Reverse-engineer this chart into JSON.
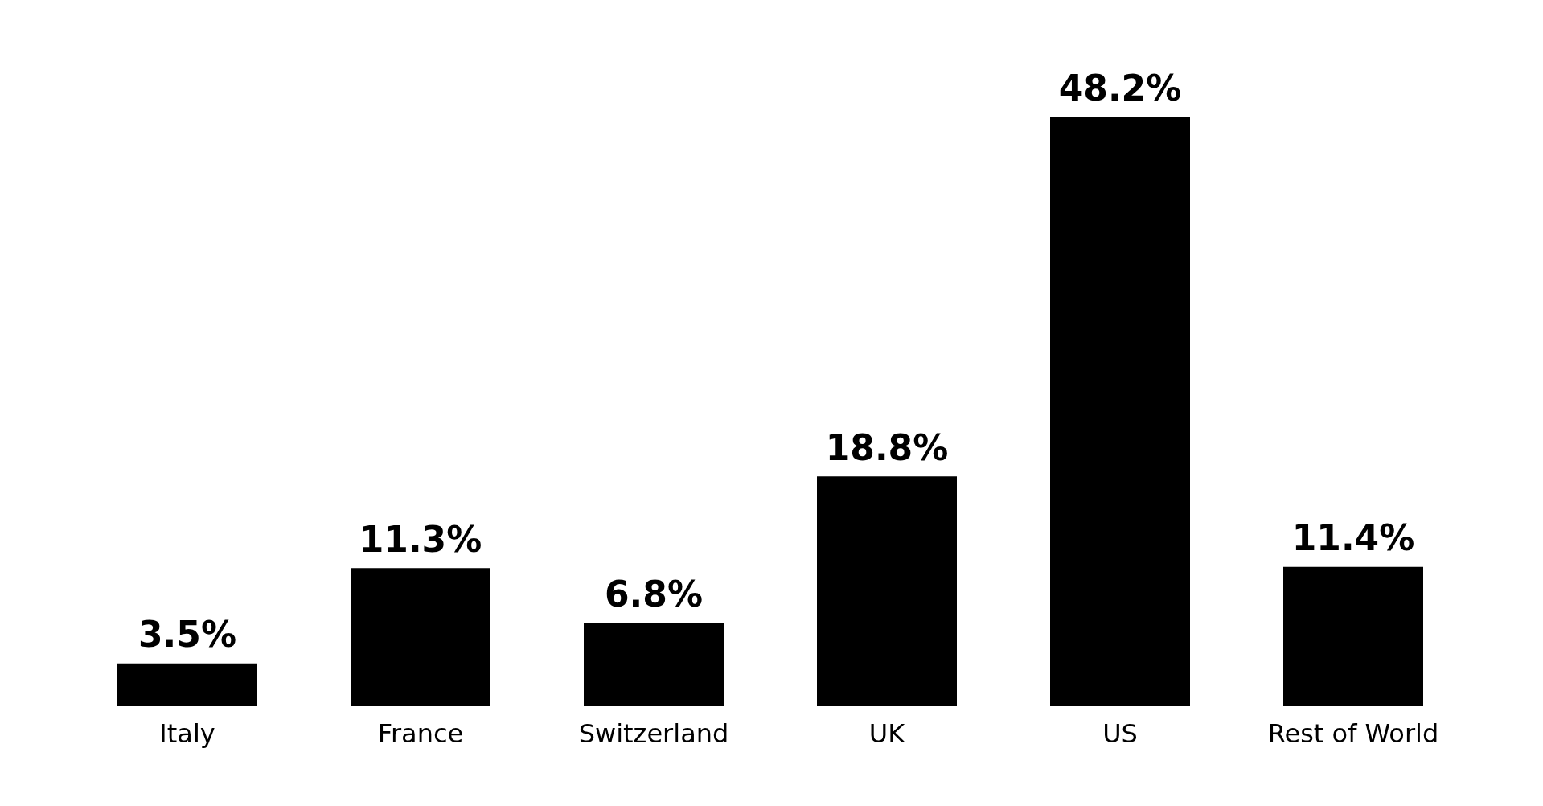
{
  "chart_data": {
    "type": "bar",
    "categories": [
      "Italy",
      "France",
      "Switzerland",
      "UK",
      "US",
      "Rest of World"
    ],
    "values": [
      3.5,
      11.3,
      6.8,
      18.8,
      48.2,
      11.4
    ],
    "value_labels": [
      "3.5%",
      "11.3%",
      "6.8%",
      "18.8%",
      "48.2%",
      "11.4%"
    ],
    "color": "#000000"
  }
}
